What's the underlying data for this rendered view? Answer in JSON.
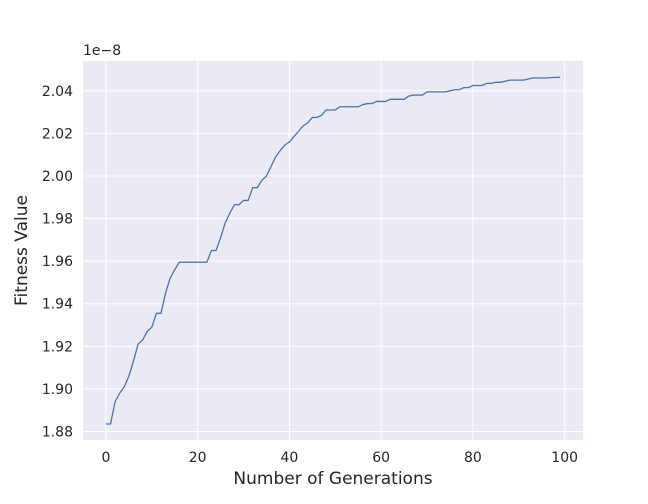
{
  "chart_data": {
    "type": "line",
    "title": "",
    "xlabel": "Number of Generations",
    "ylabel": "Fitness Value",
    "y_offset_label": "1e−8",
    "xlim": [
      -5,
      104
    ],
    "ylim": [
      1.876,
      2.054
    ],
    "x_ticks": [
      0,
      20,
      40,
      60,
      80,
      100
    ],
    "y_ticks": [
      1.88,
      1.9,
      1.92,
      1.94,
      1.96,
      1.98,
      2.0,
      2.02,
      2.04
    ],
    "x_tick_labels": [
      "0",
      "20",
      "40",
      "60",
      "80",
      "100"
    ],
    "y_tick_labels": [
      "1.88",
      "1.90",
      "1.92",
      "1.94",
      "1.96",
      "1.98",
      "2.00",
      "2.02",
      "2.04"
    ],
    "grid": true,
    "background": "#eaeaf2",
    "line_color": "#4c72b0",
    "series": [
      {
        "x": [
          0,
          1,
          2,
          3,
          4,
          5,
          6,
          7,
          8,
          9,
          10,
          11,
          12,
          13,
          14,
          15,
          16,
          17,
          18,
          19,
          20,
          21,
          22,
          23,
          24,
          25,
          26,
          27,
          28,
          29,
          30,
          31,
          32,
          33,
          34,
          35,
          36,
          37,
          38,
          39,
          40,
          41,
          42,
          43,
          44,
          45,
          46,
          47,
          48,
          49,
          50,
          51,
          52,
          53,
          54,
          55,
          56,
          57,
          58,
          59,
          60,
          61,
          62,
          63,
          64,
          65,
          66,
          67,
          68,
          69,
          70,
          71,
          72,
          73,
          74,
          75,
          76,
          77,
          78,
          79,
          80,
          81,
          82,
          83,
          84,
          85,
          86,
          87,
          88,
          89,
          90,
          91,
          92,
          93,
          94,
          95,
          96,
          97,
          98,
          99
        ],
        "values": [
          1.8835,
          1.8835,
          1.894,
          1.898,
          1.901,
          1.906,
          1.913,
          1.921,
          1.923,
          1.927,
          1.929,
          1.9355,
          1.9355,
          1.945,
          1.952,
          1.956,
          1.9595,
          1.9595,
          1.9595,
          1.9595,
          1.9595,
          1.9595,
          1.9595,
          1.965,
          1.965,
          1.971,
          1.978,
          1.9825,
          1.9865,
          1.9865,
          1.9885,
          1.9885,
          1.9945,
          1.9945,
          1.998,
          2.0,
          2.0045,
          2.009,
          2.012,
          2.0145,
          2.016,
          2.0185,
          2.021,
          2.0235,
          2.025,
          2.0275,
          2.0275,
          2.0285,
          2.031,
          2.031,
          2.031,
          2.0325,
          2.0325,
          2.0325,
          2.0325,
          2.0325,
          2.0335,
          2.034,
          2.034,
          2.035,
          2.035,
          2.035,
          2.036,
          2.036,
          2.036,
          2.036,
          2.0375,
          2.038,
          2.038,
          2.038,
          2.0395,
          2.0395,
          2.0395,
          2.0395,
          2.0395,
          2.04,
          2.0405,
          2.0405,
          2.0415,
          2.0415,
          2.0425,
          2.0425,
          2.0425,
          2.0435,
          2.0435,
          2.044,
          2.044,
          2.0445,
          2.045,
          2.045,
          2.045,
          2.045,
          2.0455,
          2.046,
          2.046,
          2.046,
          2.046,
          2.0462,
          2.0463,
          2.0463
        ]
      }
    ]
  }
}
